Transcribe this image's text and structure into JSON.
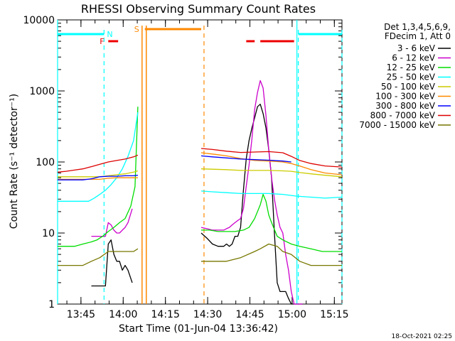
{
  "chart_data": {
    "type": "line",
    "title": "RHESSI Observing Summary Count Rates",
    "xlabel": "Start Time (01-Jun-04 13:36:42)",
    "ylabel": "Count Rate (s⁻¹ detector⁻¹)",
    "yscale": "log",
    "ylim": [
      1,
      10000
    ],
    "xlim_minutes": [
      0,
      101
    ],
    "x_ticks": [
      {
        "t": 8.3,
        "label": "13:45"
      },
      {
        "t": 23.3,
        "label": "14:00"
      },
      {
        "t": 38.3,
        "label": "14:15"
      },
      {
        "t": 53.3,
        "label": "14:30"
      },
      {
        "t": 68.3,
        "label": "14:45"
      },
      {
        "t": 83.3,
        "label": "15:00"
      },
      {
        "t": 98.3,
        "label": "15:15"
      }
    ],
    "y_ticks": [
      {
        "v": 1,
        "label": "1"
      },
      {
        "v": 10,
        "label": "10"
      },
      {
        "v": 100,
        "label": "100"
      },
      {
        "v": 1000,
        "label": "1000"
      },
      {
        "v": 10000,
        "label": "10000"
      }
    ],
    "legend_header": [
      "Det 1,3,4,5,6,9,",
      "FDecim 1, Att 0"
    ],
    "gap_minutes": [
      29,
      51
    ],
    "series": [
      {
        "name": "3 - 6 keV",
        "color": "#000000",
        "t": [
          12,
          13,
          14,
          15,
          16,
          17,
          18,
          19,
          20,
          21,
          22,
          23,
          24,
          25,
          26.5,
          51,
          53,
          55,
          57,
          58,
          59,
          60,
          61,
          62,
          63,
          64,
          65,
          66,
          67,
          68,
          69,
          70,
          71,
          72,
          73,
          74,
          75,
          76,
          77,
          78,
          79,
          80,
          81,
          82,
          83,
          84,
          85,
          86,
          87
        ],
        "v": [
          1.8,
          1.8,
          1.8,
          1.8,
          1.8,
          1.8,
          7,
          8,
          5,
          4,
          4,
          3,
          3.5,
          3,
          2,
          10,
          8.5,
          7,
          6.5,
          6.5,
          6.5,
          7,
          6.5,
          7,
          9,
          9,
          12,
          40,
          110,
          200,
          300,
          420,
          600,
          650,
          480,
          300,
          150,
          60,
          10,
          2,
          1.5,
          1.5,
          1.5,
          1.2,
          1,
          1,
          1,
          1,
          1
        ]
      },
      {
        "name": "6 - 12 keV",
        "color": "#cc00cc",
        "t": [
          12,
          13,
          14,
          15,
          16,
          17,
          18,
          19,
          20,
          21,
          22,
          23,
          24,
          25,
          26.5,
          51,
          53,
          55,
          57,
          58,
          59,
          60,
          61,
          62,
          63,
          64,
          65,
          66,
          67,
          68,
          69,
          70,
          71,
          72,
          73,
          74,
          75,
          76,
          77,
          78,
          79,
          80,
          81,
          82,
          83,
          84,
          85,
          86,
          87
        ],
        "v": [
          9,
          9,
          9,
          9,
          9,
          9,
          14,
          13,
          11,
          10,
          10,
          11,
          12,
          14,
          22,
          12,
          11.5,
          11,
          11,
          11,
          11,
          11.5,
          12,
          13,
          14,
          15,
          16,
          22,
          45,
          90,
          210,
          550,
          950,
          1400,
          1100,
          450,
          150,
          60,
          30,
          18,
          12,
          10,
          5,
          3,
          1.5,
          1,
          1,
          1,
          1
        ]
      },
      {
        "name": "12 - 25 keV",
        "color": "#00dd00",
        "t": [
          0,
          3,
          6,
          9,
          12,
          14,
          16,
          18,
          20,
          22,
          24,
          26,
          27.5,
          28.5,
          51,
          54,
          57,
          60,
          63,
          66,
          68,
          70,
          72,
          73,
          74,
          75,
          76,
          78,
          80,
          83,
          86,
          90,
          94,
          98,
          101
        ],
        "v": [
          6.5,
          6.5,
          6.5,
          7,
          7.5,
          8,
          9,
          10.5,
          12,
          14,
          16,
          24,
          45,
          600,
          11,
          11,
          10.5,
          10.5,
          10.5,
          11,
          12,
          16,
          25,
          35,
          28,
          18,
          14,
          9,
          8,
          7,
          6.5,
          6,
          5.5,
          5.5,
          5.5
        ]
      },
      {
        "name": "25 - 50 keV",
        "color": "#00ffff",
        "t": [
          0,
          3,
          6,
          9,
          11,
          13,
          15,
          17,
          19,
          21,
          23,
          25,
          27,
          28.5,
          51,
          55,
          60,
          65,
          70,
          75,
          80,
          85,
          90,
          95,
          101
        ],
        "v": [
          28,
          28,
          28,
          28,
          28,
          31,
          35,
          40,
          48,
          60,
          80,
          120,
          200,
          500,
          39,
          38,
          37,
          36,
          36,
          36,
          35,
          33,
          32,
          31,
          32
        ]
      },
      {
        "name": "50 - 100 keV",
        "color": "#cccc00",
        "t": [
          0,
          3,
          6,
          9,
          12,
          15,
          18,
          21,
          24,
          27,
          28.5,
          51,
          60,
          65,
          70,
          75,
          80,
          83,
          86,
          90,
          95,
          101
        ],
        "v": [
          62,
          62,
          62,
          62,
          62,
          62,
          64,
          66,
          68,
          72,
          75,
          80,
          78,
          76,
          76,
          76,
          75,
          74,
          71,
          68,
          65,
          62
        ]
      },
      {
        "name": "100 - 300 keV",
        "color": "#ff8800",
        "t": [
          0,
          3,
          6,
          9,
          12,
          15,
          18,
          21,
          24,
          27,
          28.5,
          51,
          56,
          60,
          65,
          70,
          75,
          80,
          83,
          86,
          90,
          95,
          101
        ],
        "v": [
          57,
          57,
          57,
          57,
          57,
          57,
          59,
          60,
          60,
          60,
          60,
          135,
          128,
          122,
          112,
          105,
          103,
          100,
          95,
          88,
          78,
          70,
          66
        ]
      },
      {
        "name": "300 - 800 keV",
        "color": "#0000ff",
        "t": [
          0,
          3,
          6,
          9,
          12,
          15,
          18,
          21,
          24,
          27,
          28.5,
          51,
          55,
          60,
          65,
          70,
          75,
          80,
          83
        ],
        "v": [
          56,
          56,
          56,
          56,
          58,
          62,
          63,
          63,
          64,
          64,
          65,
          122,
          118,
          114,
          110,
          108,
          106,
          103,
          100
        ]
      },
      {
        "name": "800 - 7000 keV",
        "color": "#dd0000",
        "t": [
          0,
          3,
          6,
          9,
          12,
          15,
          18,
          21,
          24,
          27,
          28.5,
          51,
          55,
          60,
          65,
          70,
          75,
          80,
          83,
          86,
          90,
          95,
          101
        ],
        "v": [
          72,
          74,
          77,
          80,
          86,
          93,
          100,
          105,
          110,
          118,
          125,
          155,
          150,
          142,
          136,
          138,
          140,
          135,
          120,
          105,
          95,
          88,
          85
        ]
      },
      {
        "name": "7000 - 15000 keV",
        "color": "#777700",
        "t": [
          0,
          3,
          6,
          9,
          12,
          15,
          18,
          21,
          24,
          27,
          28.5,
          51,
          55,
          60,
          65,
          70,
          72,
          75,
          78,
          80,
          83,
          86,
          90,
          95,
          101
        ],
        "v": [
          3.5,
          3.5,
          3.5,
          3.5,
          4,
          4.5,
          5.5,
          5.5,
          5.5,
          5.5,
          6,
          4,
          4,
          4,
          4.5,
          5.5,
          6,
          7,
          6.5,
          5.5,
          5,
          4,
          3.5,
          3.5,
          3.5
        ]
      }
    ],
    "annotations": {
      "N_label": "N",
      "S_label": "S",
      "F_label": "F",
      "night_bars": [
        [
          0,
          16.5
        ],
        [
          85.5,
          101
        ]
      ],
      "saa_bar": [
        31,
        51
      ],
      "flare_bars": [
        [
          18,
          21.5
        ],
        [
          67,
          70
        ],
        [
          72,
          84
        ]
      ],
      "cyan_dashed_lines": [
        16.5,
        85.5,
        101
      ],
      "cyan_solid_lines": [
        0,
        85
      ],
      "orange_solid_lines": [
        30,
        31.5
      ],
      "orange_dashed_lines": [
        52
      ]
    },
    "timestamp": "18-Oct-2021 02:25"
  },
  "colors": {
    "night": "#00ffff",
    "saa": "#ff8800",
    "flare": "#ee0000"
  }
}
